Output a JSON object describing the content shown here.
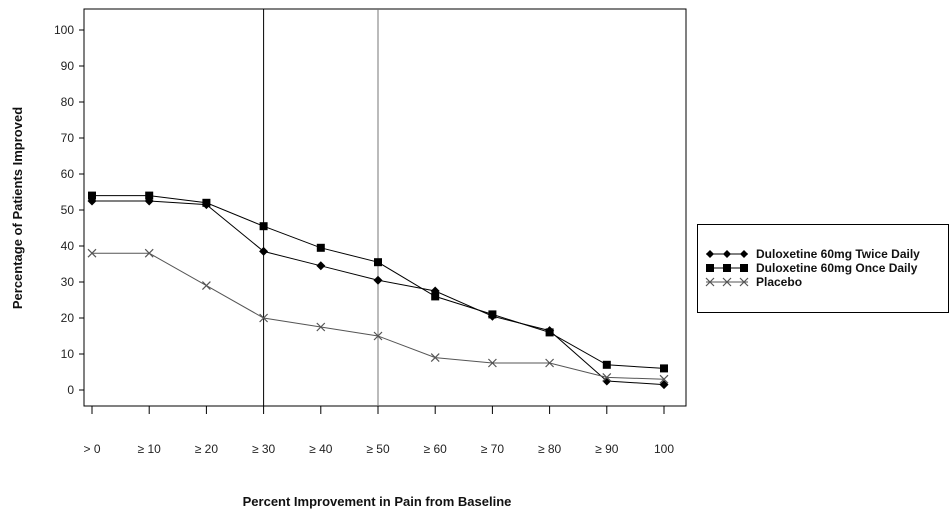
{
  "chart_data": {
    "type": "line",
    "xlabel": "Percent Improvement in Pain from Baseline",
    "ylabel": "Percentage of Patients Improved",
    "categories": [
      "> 0",
      "≥ 10",
      "≥ 20",
      "≥ 30",
      "≥ 40",
      "≥ 50",
      "≥ 60",
      "≥ 70",
      "≥ 80",
      "≥ 90",
      "100"
    ],
    "ylim": [
      0,
      100
    ],
    "yticks": [
      0,
      10,
      20,
      30,
      40,
      50,
      60,
      70,
      80,
      90,
      100
    ],
    "reference_lines_at": [
      "≥ 30",
      "≥ 50"
    ],
    "grid": false,
    "legend_position": "right",
    "series": [
      {
        "name": "Duloxetine 60mg Twice Daily",
        "marker": "diamond",
        "color": "#000000",
        "values": [
          52.5,
          52.5,
          51.5,
          38.5,
          34.5,
          30.5,
          27.5,
          20.5,
          16.5,
          2.5,
          1.5
        ]
      },
      {
        "name": "Duloxetine 60mg Once Daily",
        "marker": "square",
        "color": "#000000",
        "values": [
          54,
          54,
          52,
          45.5,
          39.5,
          35.5,
          26,
          21,
          16,
          7,
          6
        ]
      },
      {
        "name": "Placebo",
        "marker": "x",
        "color": "#444444",
        "values": [
          38,
          38,
          29,
          20,
          17.5,
          15,
          9,
          7.5,
          7.5,
          3.5,
          3
        ]
      }
    ]
  }
}
